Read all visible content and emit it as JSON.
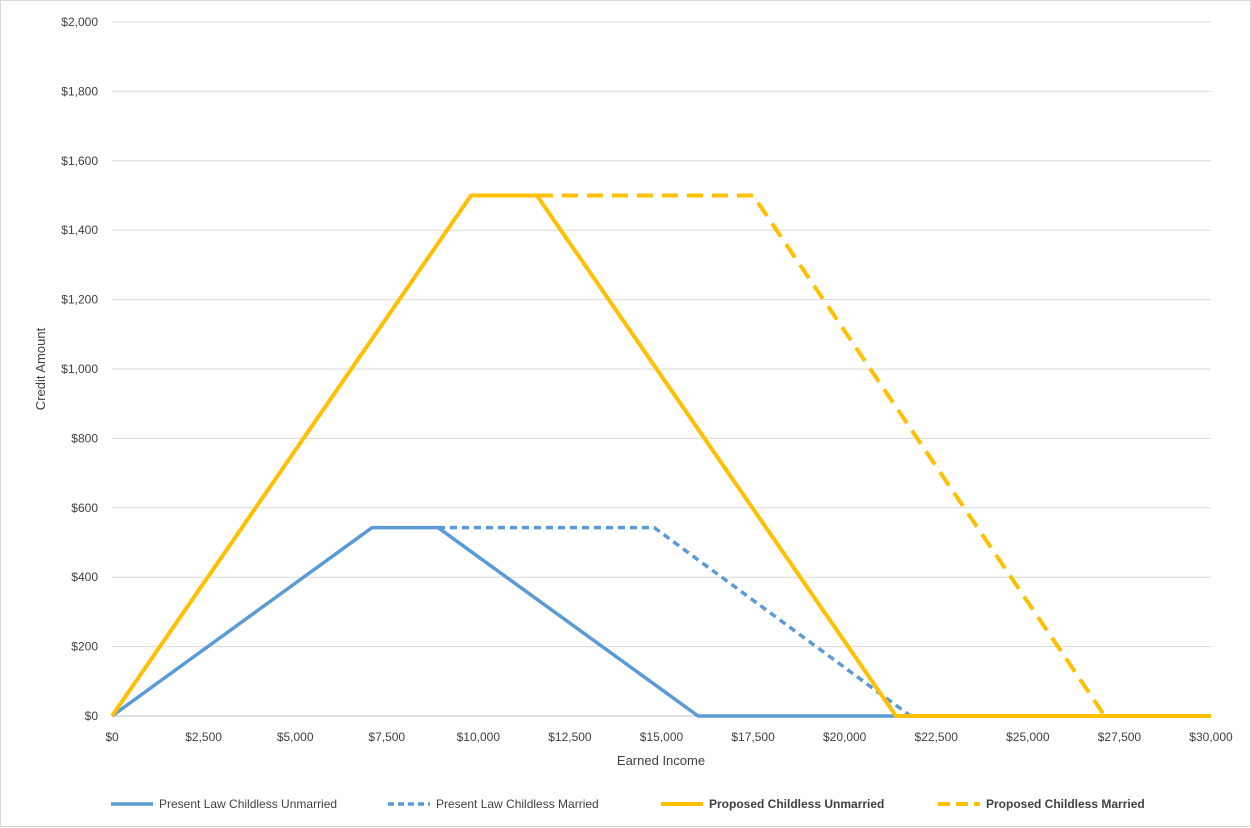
{
  "chart_data": {
    "type": "line",
    "title": "",
    "xlabel": "Earned Income",
    "ylabel": "Credit Amount",
    "xlim": [
      0,
      30000
    ],
    "ylim": [
      0,
      2000
    ],
    "x_ticks": [
      0,
      2500,
      5000,
      7500,
      10000,
      12500,
      15000,
      17500,
      20000,
      22500,
      25000,
      27500,
      30000
    ],
    "x_tick_labels": [
      "$0",
      "$2,500",
      "$5,000",
      "$7,500",
      "$10,000",
      "$12,500",
      "$15,000",
      "$17,500",
      "$20,000",
      "$22,500",
      "$25,000",
      "$27,500",
      "$30,000"
    ],
    "y_ticks": [
      0,
      200,
      400,
      600,
      800,
      1000,
      1200,
      1400,
      1600,
      1800,
      2000
    ],
    "y_tick_labels": [
      "$0",
      "$200",
      "$400",
      "$600",
      "$800",
      "$1,000",
      "$1,200",
      "$1,400",
      "$1,600",
      "$1,800",
      "$2,000"
    ],
    "grid": "horizontal",
    "legend_position": "bottom",
    "series": [
      {
        "name": "Present Law Childless Unmarried",
        "color": "#5b9bd5",
        "style": "solid",
        "legend_bold": false,
        "points": [
          [
            0,
            0
          ],
          [
            7100,
            543
          ],
          [
            8900,
            543
          ],
          [
            16000,
            0
          ],
          [
            30000,
            0
          ]
        ]
      },
      {
        "name": "Present Law Childless Married",
        "color": "#5b9bd5",
        "style": "dashed",
        "legend_bold": false,
        "points": [
          [
            8900,
            543
          ],
          [
            14800,
            543
          ],
          [
            21800,
            0
          ]
        ]
      },
      {
        "name": "Proposed Childless Unmarried",
        "color": "#ffc000",
        "style": "solid",
        "legend_bold": true,
        "points": [
          [
            0,
            0
          ],
          [
            9800,
            1500
          ],
          [
            11600,
            1500
          ],
          [
            21400,
            0
          ],
          [
            30000,
            0
          ]
        ]
      },
      {
        "name": "Proposed Childless Married",
        "color": "#ffc000",
        "style": "dashed",
        "legend_bold": true,
        "points": [
          [
            11600,
            1500
          ],
          [
            17500,
            1500
          ],
          [
            27100,
            0
          ]
        ]
      }
    ]
  }
}
